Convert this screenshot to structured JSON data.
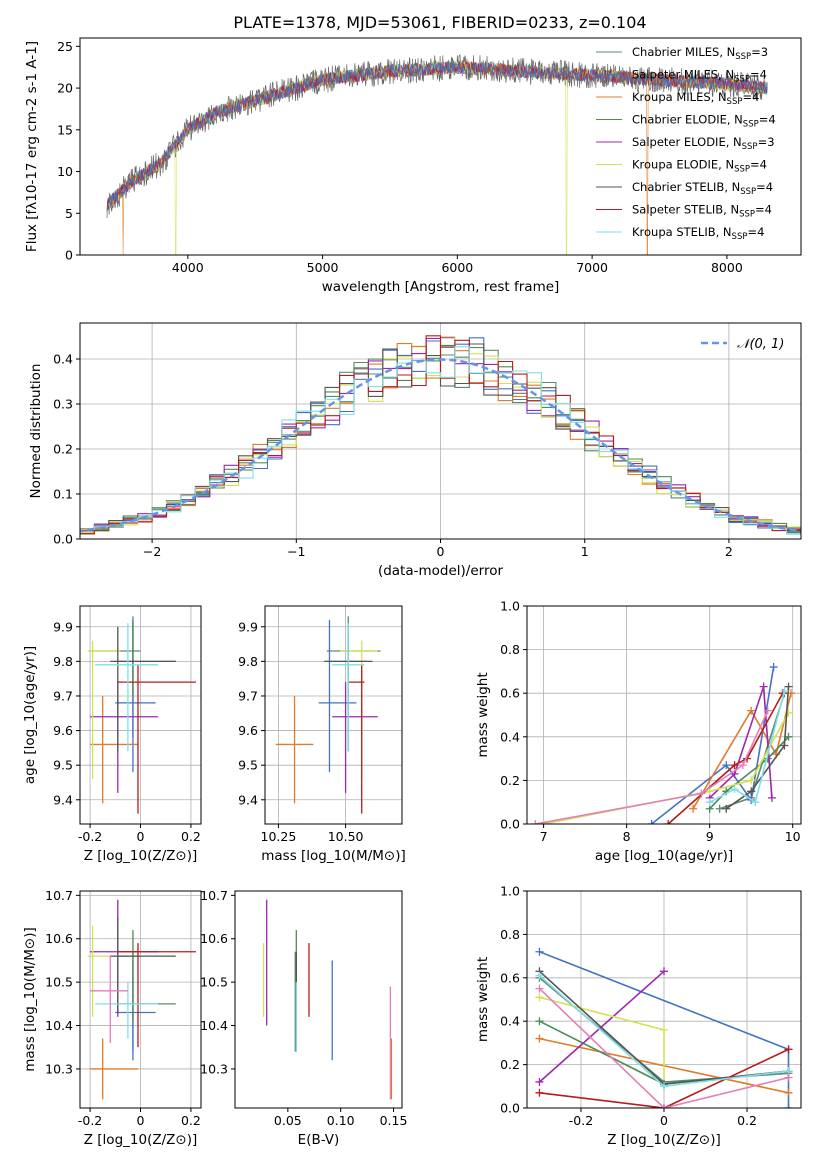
{
  "figure": {
    "title": "PLATE=1378, MJD=53061, FIBERID=0233, z=0.104"
  },
  "models": [
    {
      "label": "Chabrier MILES, N$_{SSP}$=3",
      "imf": "Chabrier",
      "lib": "MILES",
      "nssp": "3",
      "color": "#5b8c6a"
    },
    {
      "label": "Salpeter MILES, N$_{SSP}$=4",
      "imf": "Salpeter",
      "lib": "MILES",
      "nssp": "4",
      "color": "#4472c4"
    },
    {
      "label": "Kroupa MILES, N$_{SSP}$=4",
      "imf": "Kroupa",
      "lib": "MILES",
      "nssp": "4",
      "color": "#e07b2a"
    },
    {
      "label": "Chabrier ELODIE, N$_{SSP}$=4",
      "imf": "Chabrier",
      "lib": "ELODIE",
      "nssp": "4",
      "color": "#4d8a57"
    },
    {
      "label": "Salpeter ELODIE, N$_{SSP}$=3",
      "imf": "Salpeter",
      "lib": "ELODIE",
      "nssp": "3",
      "color": "#9c27b0"
    },
    {
      "label": "Kroupa ELODIE, N$_{SSP}$=4",
      "imf": "Kroupa",
      "lib": "ELODIE",
      "nssp": "4",
      "color": "#d4e157"
    },
    {
      "label": "Chabrier STELIB, N$_{SSP}$=4",
      "imf": "Chabrier",
      "lib": "STELIB",
      "nssp": "4",
      "color": "#555555"
    },
    {
      "label": "Salpeter STELIB, N$_{SSP}$=4",
      "imf": "Salpeter",
      "lib": "STELIB",
      "nssp": "4",
      "color": "#b71c1c"
    },
    {
      "label": "Kroupa STELIB, N$_{SSP}$=4",
      "imf": "Kroupa",
      "lib": "STELIB",
      "nssp": "4",
      "color": "#80deea"
    }
  ],
  "chart_data": [
    {
      "id": "spectrum",
      "type": "line",
      "xlabel": "wavelength [Angstrom, rest frame]",
      "ylabel": "Flux [f$_\\lambda$10$^{-17}$ erg cm$^{-2}$ s$^{-1}$ A$^{-1}$]",
      "xlim": [
        3200,
        8550
      ],
      "ylim": [
        0,
        26
      ],
      "xticks": [
        4000,
        5000,
        6000,
        7000,
        8000
      ],
      "yticks": [
        0,
        5,
        10,
        15,
        20,
        25
      ],
      "legend": "right",
      "wavelength_range": [
        3400,
        8300
      ],
      "continuum": [
        [
          3400,
          6
        ],
        [
          3600,
          9
        ],
        [
          3800,
          11
        ],
        [
          4000,
          15
        ],
        [
          4200,
          17
        ],
        [
          4500,
          18.5
        ],
        [
          5000,
          21
        ],
        [
          5500,
          22
        ],
        [
          6000,
          22.5
        ],
        [
          6500,
          22
        ],
        [
          7000,
          21.5
        ],
        [
          7500,
          21
        ],
        [
          8000,
          20.5
        ],
        [
          8300,
          20
        ]
      ],
      "glitches": [
        {
          "x": 3520,
          "y": 0,
          "series": 2
        },
        {
          "x": 3910,
          "y": 0,
          "series": 5
        },
        {
          "x": 6810,
          "y": 0,
          "series": 5
        },
        {
          "x": 7410,
          "y": 0,
          "series": 2
        }
      ],
      "grid": false
    },
    {
      "id": "residual-histogram",
      "type": "line",
      "xlabel": "(data-model)/error",
      "ylabel": "Normed distribution",
      "xlim": [
        -2.5,
        2.5
      ],
      "ylim": [
        0,
        0.48
      ],
      "xticks": [
        -2,
        -1,
        0,
        1,
        2
      ],
      "yticks": [
        0.0,
        0.1,
        0.2,
        0.3,
        0.4
      ],
      "legend": "top-right",
      "reference_label": "$\\mathcal{N}(0,1)$",
      "reference_color": "#6495ed",
      "bin_width": 0.1,
      "grid": true
    },
    {
      "id": "age-vs-Z",
      "type": "scatter",
      "xlabel": "Z [log$_{10}$(Z/Z$_\\odot$)]",
      "ylabel": "age  [log$_{10}$(age/yr)]",
      "xlim": [
        -0.24,
        0.24
      ],
      "ylim": [
        9.33,
        9.96
      ],
      "xticks": [
        -0.2,
        0.0,
        0.2
      ],
      "yticks": [
        9.4,
        9.5,
        9.6,
        9.7,
        9.8,
        9.9
      ],
      "points": [
        {
          "x": -0.03,
          "y": 9.83,
          "xerr": [
            0.17,
            0.03
          ],
          "yerr": [
            0.25,
            0.1
          ],
          "series": 0
        },
        {
          "x": -0.03,
          "y": 9.68,
          "xerr": [
            0.07,
            0.09
          ],
          "yerr": [
            0.2,
            0.24
          ],
          "series": 1
        },
        {
          "x": -0.15,
          "y": 9.56,
          "xerr": [
            0.05,
            0.14
          ],
          "yerr": [
            0.17,
            0.14
          ],
          "series": 2
        },
        {
          "x": -0.03,
          "y": 9.8,
          "xerr": [
            0.07,
            0.17
          ],
          "yerr": [
            0.1,
            0.11
          ],
          "series": 3
        },
        {
          "x": -0.09,
          "y": 9.64,
          "xerr": [
            0.11,
            0.16
          ],
          "yerr": [
            0.22,
            0.1
          ],
          "series": 4
        },
        {
          "x": -0.19,
          "y": 9.83,
          "xerr": [
            0.02,
            0.11
          ],
          "yerr": [
            0.37,
            0.03
          ],
          "series": 5
        },
        {
          "x": -0.09,
          "y": 9.8,
          "xerr": [
            0.03,
            0.23
          ],
          "yerr": [
            0.26,
            0.1
          ],
          "series": 6
        },
        {
          "x": -0.01,
          "y": 9.74,
          "xerr": [
            0.08,
            0.23
          ],
          "yerr": [
            0.38,
            0.05
          ],
          "series": 7
        },
        {
          "x": -0.05,
          "y": 9.79,
          "xerr": [
            0.13,
            0.12
          ],
          "yerr": [
            0.25,
            0.12
          ],
          "series": 8
        }
      ],
      "grid": true
    },
    {
      "id": "age-vs-mass",
      "type": "scatter",
      "xlabel": "mass [log$_{10}$(M/M$_\\odot$)]",
      "ylabel": "",
      "xlim": [
        10.2,
        10.71
      ],
      "ylim": [
        9.33,
        9.96
      ],
      "xticks": [
        10.25,
        10.5
      ],
      "xtick_labels": [
        "10.25",
        "10.50"
      ],
      "yticks": [
        9.4,
        9.5,
        9.6,
        9.7,
        9.8,
        9.9
      ],
      "points": [
        {
          "x": 10.51,
          "y": 9.83,
          "xerr": [
            0.08,
            0.12
          ],
          "yerr": [
            0.25,
            0.1
          ],
          "series": 0
        },
        {
          "x": 10.44,
          "y": 9.68,
          "xerr": [
            0.04,
            0.1
          ],
          "yerr": [
            0.2,
            0.24
          ],
          "series": 1
        },
        {
          "x": 10.31,
          "y": 9.56,
          "xerr": [
            0.07,
            0.07
          ],
          "yerr": [
            0.17,
            0.14
          ],
          "series": 2
        },
        {
          "x": 10.51,
          "y": 9.8,
          "xerr": [
            0.08,
            0.07
          ],
          "yerr": [
            0.1,
            0.11
          ],
          "series": 3
        },
        {
          "x": 10.5,
          "y": 9.64,
          "xerr": [
            0.05,
            0.12
          ],
          "yerr": [
            0.22,
            0.1
          ],
          "series": 4
        },
        {
          "x": 10.56,
          "y": 9.83,
          "xerr": [
            0.08,
            0.06
          ],
          "yerr": [
            0.37,
            0.03
          ],
          "series": 5
        },
        {
          "x": 10.51,
          "y": 9.8,
          "xerr": [
            0.09,
            0.09
          ],
          "yerr": [
            0.26,
            0.1
          ],
          "series": 6
        },
        {
          "x": 10.56,
          "y": 9.74,
          "xerr": [
            0.05,
            0.01
          ],
          "yerr": [
            0.38,
            0.05
          ],
          "series": 7
        },
        {
          "x": 10.51,
          "y": 9.79,
          "xerr": [
            0.06,
            0.06
          ],
          "yerr": [
            0.25,
            0.12
          ],
          "series": 8
        }
      ],
      "grid": true
    },
    {
      "id": "mass-weight-vs-age",
      "type": "line",
      "xlabel": "age  [log$_{10}$(age/yr)]",
      "ylabel": "mass weight",
      "xlim": [
        6.8,
        10.1
      ],
      "ylim": [
        0,
        1
      ],
      "xticks": [
        7,
        8,
        9,
        10
      ],
      "yticks": [
        0.0,
        0.2,
        0.4,
        0.6,
        0.8,
        1.0
      ],
      "series": [
        {
          "series": 0,
          "x": [
            9.12,
            9.5,
            9.9
          ],
          "y": [
            0.07,
            0.12,
            0.6
          ]
        },
        {
          "series": 1,
          "x": [
            8.3,
            9.2,
            9.5,
            9.77
          ],
          "y": [
            0.0,
            0.27,
            0.11,
            0.72
          ]
        },
        {
          "series": 2,
          "x": [
            8.8,
            9.5,
            9.8,
            9.98
          ],
          "y": [
            0.07,
            0.52,
            0.32,
            0.6
          ]
        },
        {
          "series": 3,
          "x": [
            9.0,
            9.2,
            9.7,
            9.95
          ],
          "y": [
            0.07,
            0.15,
            0.3,
            0.4
          ]
        },
        {
          "series": 4,
          "x": [
            9.0,
            9.3,
            9.65,
            9.75
          ],
          "y": [
            0.12,
            0.23,
            0.63,
            0.12
          ]
        },
        {
          "series": 5,
          "x": [
            7.0,
            9.0,
            9.5,
            9.95
          ],
          "y": [
            0.0,
            0.15,
            0.2,
            0.51
          ]
        },
        {
          "series": 6,
          "x": [
            9.2,
            9.5,
            9.9,
            9.95
          ],
          "y": [
            0.07,
            0.15,
            0.36,
            0.63
          ]
        },
        {
          "series": 7,
          "x": [
            8.5,
            9.3,
            9.45,
            9.88
          ],
          "y": [
            0.0,
            0.27,
            0.3,
            0.6
          ]
        },
        {
          "series": 8,
          "x": [
            9.0,
            9.3,
            9.55,
            9.9
          ],
          "y": [
            0.1,
            0.16,
            0.1,
            0.61
          ]
        },
        {
          "series": 9,
          "x": [
            6.9,
            8.9,
            9.4,
            9.7
          ],
          "y": [
            0.0,
            0.14,
            0.27,
            0.52
          ]
        }
      ],
      "extra_color": "#e57eb8",
      "grid": true
    },
    {
      "id": "mass-vs-Z",
      "type": "scatter",
      "xlabel": "Z [log$_{10}$(Z/Z$_\\odot$)]",
      "ylabel": "mass [log$_{10}$(M/M$_\\odot$)]",
      "xlim": [
        -0.24,
        0.24
      ],
      "ylim": [
        10.21,
        10.71
      ],
      "xticks": [
        -0.2,
        0.0,
        0.2
      ],
      "yticks": [
        10.3,
        10.4,
        10.5,
        10.6,
        10.7
      ],
      "points": [
        {
          "x": -0.03,
          "y": 10.45,
          "xerr": [
            0.07,
            0.17
          ],
          "yerr": [
            0.11,
            0.12
          ],
          "series": 0
        },
        {
          "x": -0.03,
          "y": 10.43,
          "xerr": [
            0.07,
            0.09
          ],
          "yerr": [
            0.11,
            0.12
          ],
          "series": 1
        },
        {
          "x": -0.15,
          "y": 10.3,
          "xerr": [
            0.05,
            0.14
          ],
          "yerr": [
            0.07,
            0.07
          ],
          "series": 2
        },
        {
          "x": -0.03,
          "y": 10.56,
          "xerr": [
            0.07,
            0.03
          ],
          "yerr": [
            0.15,
            0.06
          ],
          "series": 3
        },
        {
          "x": -0.09,
          "y": 10.57,
          "xerr": [
            0.11,
            0.16
          ],
          "yerr": [
            0.15,
            0.12
          ],
          "series": 4
        },
        {
          "x": -0.19,
          "y": 10.56,
          "xerr": [
            0.02,
            0.11
          ],
          "yerr": [
            0.14,
            0.07
          ],
          "series": 5
        },
        {
          "x": -0.09,
          "y": 10.56,
          "xerr": [
            0.03,
            0.23
          ],
          "yerr": [
            0.13,
            0.09
          ],
          "series": 6
        },
        {
          "x": -0.01,
          "y": 10.57,
          "xerr": [
            0.08,
            0.23
          ],
          "yerr": [
            0.22,
            0.02
          ],
          "series": 7
        },
        {
          "x": -0.05,
          "y": 10.45,
          "xerr": [
            0.13,
            0.12
          ],
          "yerr": [
            0.08,
            0.05
          ],
          "series": 8
        },
        {
          "x": -0.12,
          "y": 10.48,
          "xerr": [
            0.08,
            0.07
          ],
          "yerr": [
            0.12,
            0.08
          ],
          "series": 9
        }
      ],
      "grid": true
    },
    {
      "id": "mass-vs-EBV",
      "type": "scatter",
      "xlabel": "E(B-V)",
      "ylabel": "",
      "xlim": [
        0.0,
        0.158
      ],
      "ylim": [
        10.21,
        10.71
      ],
      "xticks": [
        0.05,
        0.1,
        0.15
      ],
      "xtick_labels": [
        "0.05",
        "0.10",
        "0.15"
      ],
      "yticks": [
        10.3,
        10.4,
        10.5,
        10.6,
        10.7
      ],
      "points": [
        {
          "x": 0.057,
          "y": 10.45,
          "yerr": [
            0.11,
            0.12
          ],
          "series": 0
        },
        {
          "x": 0.092,
          "y": 10.43,
          "yerr": [
            0.11,
            0.12
          ],
          "series": 1
        },
        {
          "x": 0.148,
          "y": 10.3,
          "yerr": [
            0.07,
            0.07
          ],
          "series": 2
        },
        {
          "x": 0.058,
          "y": 10.56,
          "yerr": [
            0.15,
            0.06
          ],
          "series": 3
        },
        {
          "x": 0.03,
          "y": 10.57,
          "yerr": [
            0.17,
            0.12
          ],
          "series": 4
        },
        {
          "x": 0.027,
          "y": 10.52,
          "yerr": [
            0.1,
            0.07
          ],
          "series": 5
        },
        {
          "x": 0.058,
          "y": 10.5,
          "yerr": [
            0.16,
            0.07
          ],
          "series": 6
        },
        {
          "x": 0.07,
          "y": 10.5,
          "yerr": [
            0.08,
            0.09
          ],
          "series": 7
        },
        {
          "x": 0.058,
          "y": 10.45,
          "yerr": [
            0.11,
            0.05
          ],
          "series": 8
        },
        {
          "x": 0.147,
          "y": 10.39,
          "yerr": [
            0.16,
            0.1
          ],
          "series": 9
        }
      ],
      "grid": false
    },
    {
      "id": "mass-weight-vs-Z",
      "type": "line",
      "xlabel": "Z [log$_{10}$(Z/Z$_\\odot$)]",
      "ylabel": "mass weight",
      "xlim": [
        -0.33,
        0.33
      ],
      "ylim": [
        0,
        1
      ],
      "xticks": [
        -0.2,
        0.0,
        0.2
      ],
      "yticks": [
        0.0,
        0.2,
        0.4,
        0.6,
        0.8,
        1.0
      ],
      "series": [
        {
          "series": 0,
          "x": [
            -0.3,
            0.0,
            0.3
          ],
          "y": [
            0.6,
            0.12,
            0.16
          ]
        },
        {
          "series": 1,
          "x": [
            -0.3,
            0.3,
            0.3
          ],
          "y": [
            0.72,
            0.27,
            0.0
          ]
        },
        {
          "series": 2,
          "x": [
            -0.3,
            0.3
          ],
          "y": [
            0.32,
            0.07
          ]
        },
        {
          "series": 3,
          "x": [
            -0.3,
            0.0,
            0.3
          ],
          "y": [
            0.4,
            0.11,
            0.17
          ]
        },
        {
          "series": 4,
          "x": [
            -0.3,
            0.0
          ],
          "y": [
            0.12,
            0.63
          ]
        },
        {
          "series": 5,
          "x": [
            -0.3,
            0.0,
            0.0
          ],
          "y": [
            0.51,
            0.36,
            0.1
          ]
        },
        {
          "series": 6,
          "x": [
            -0.3,
            0.0,
            0.3
          ],
          "y": [
            0.63,
            0.11,
            0.17
          ]
        },
        {
          "series": 7,
          "x": [
            -0.3,
            0.0,
            0.3
          ],
          "y": [
            0.07,
            0.0,
            0.27
          ]
        },
        {
          "series": 8,
          "x": [
            -0.3,
            0.0,
            0.3
          ],
          "y": [
            0.61,
            0.1,
            0.17
          ]
        },
        {
          "series": 9,
          "x": [
            -0.3,
            0.0,
            0.3
          ],
          "y": [
            0.55,
            0.0,
            0.14
          ]
        }
      ],
      "grid": true
    }
  ]
}
